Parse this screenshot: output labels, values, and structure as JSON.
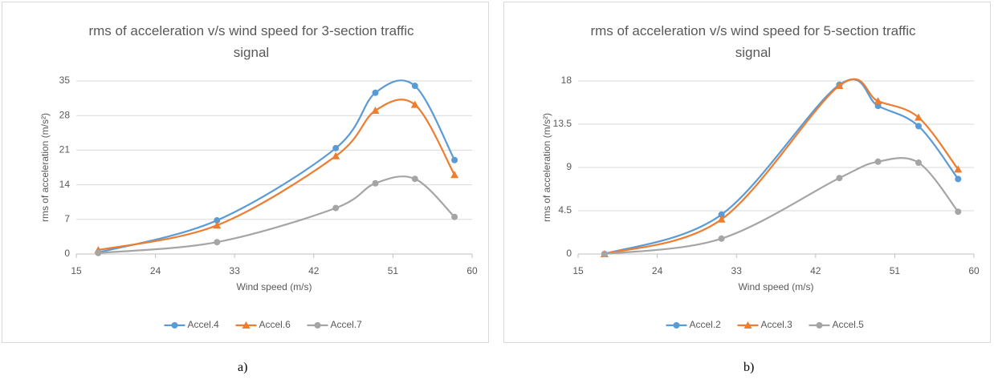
{
  "chart_data": [
    {
      "type": "line",
      "title": "rms of acceleration v/s wind speed for 3-section traffic signal",
      "x_label": "Wind speed (m/s)",
      "y_label": "rms of acceleration (m/s²)",
      "x": [
        17.5,
        31,
        44.5,
        49,
        53.5,
        58
      ],
      "xlim": [
        15,
        60
      ],
      "xticks": [
        15,
        24,
        33,
        42,
        51,
        60
      ],
      "ylim": [
        0,
        35
      ],
      "yticks": [
        0,
        7,
        14,
        21,
        28,
        35
      ],
      "grid": true,
      "smooth": true,
      "legend": "bottom",
      "series": [
        {
          "name": "Accel.4",
          "color": "#5b9bd5",
          "marker": "circle",
          "values": [
            0.3,
            6.8,
            21.4,
            32.6,
            34,
            19
          ]
        },
        {
          "name": "Accel.6",
          "color": "#ed7d31",
          "marker": "triangle",
          "values": [
            0.8,
            5.8,
            19.8,
            29,
            30.2,
            16
          ]
        },
        {
          "name": "Accel.7",
          "color": "#a5a5a5",
          "marker": "circle",
          "values": [
            0.2,
            2.4,
            9.3,
            14.3,
            15.2,
            7.5
          ]
        }
      ]
    },
    {
      "type": "line",
      "title": "rms of acceleration v/s wind speed for 5-section traffic signal",
      "x_label": "Wind speed (m/s)",
      "y_label": "rms of acceleration (m/s²)",
      "x": [
        18,
        31.3,
        44.7,
        49.1,
        53.7,
        58.2
      ],
      "xlim": [
        15,
        60
      ],
      "xticks": [
        15,
        24,
        33,
        42,
        51,
        60
      ],
      "ylim": [
        0,
        18
      ],
      "yticks": [
        0,
        4.5,
        9,
        13.5,
        18
      ],
      "grid": true,
      "smooth": true,
      "legend": "bottom",
      "series": [
        {
          "name": "Accel.2",
          "color": "#5b9bd5",
          "marker": "circle",
          "values": [
            0,
            4.1,
            17.6,
            15.4,
            13.3,
            7.8
          ]
        },
        {
          "name": "Accel.3",
          "color": "#ed7d31",
          "marker": "triangle",
          "values": [
            0,
            3.6,
            17.5,
            15.9,
            14.2,
            8.8
          ]
        },
        {
          "name": "Accel.5",
          "color": "#a5a5a5",
          "marker": "circle",
          "values": [
            0,
            1.6,
            7.9,
            9.6,
            9.5,
            4.4
          ]
        }
      ]
    }
  ],
  "captions": [
    "a)",
    "b)"
  ]
}
